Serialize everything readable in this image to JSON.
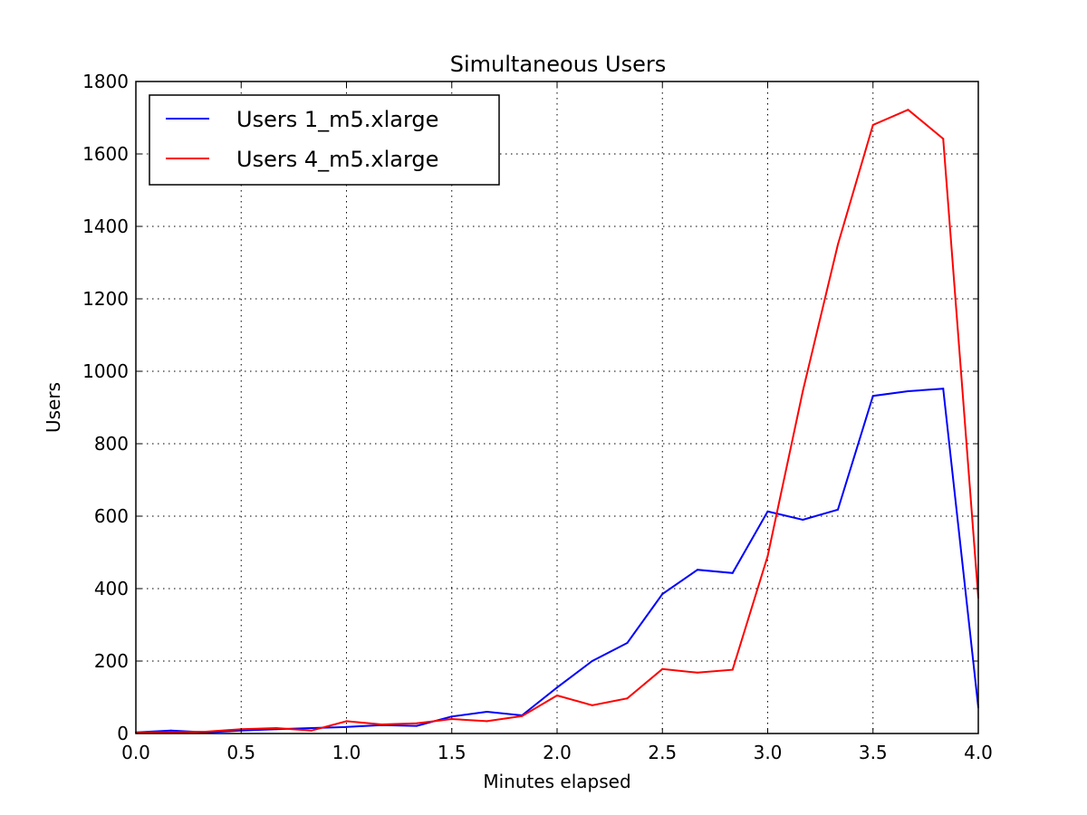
{
  "chart_data": {
    "type": "line",
    "title": "Simultaneous Users",
    "xlabel": "Minutes elapsed",
    "ylabel": "Users",
    "xlim": [
      0,
      4
    ],
    "ylim": [
      0,
      1800
    ],
    "grid": true,
    "legend_position": "top-left",
    "xticks": [
      "0.0",
      "0.5",
      "1.0",
      "1.5",
      "2.0",
      "2.5",
      "3.0",
      "3.5",
      "4.0"
    ],
    "yticks": [
      "0",
      "200",
      "400",
      "600",
      "800",
      "1000",
      "1200",
      "1400",
      "1600",
      "1800"
    ],
    "x": [
      0.0,
      0.1667,
      0.3333,
      0.5,
      0.6667,
      0.8333,
      1.0,
      1.1667,
      1.3333,
      1.5,
      1.6667,
      1.8333,
      2.0,
      2.1667,
      2.3333,
      2.5,
      2.6667,
      2.8333,
      3.0,
      3.1667,
      3.3333,
      3.5,
      3.6667,
      3.8333,
      4.0
    ],
    "series": [
      {
        "name": "Users 1_m5.xlarge",
        "color": "#0000ff",
        "values": [
          3,
          8,
          3,
          8,
          12,
          15,
          18,
          23,
          21,
          47,
          60,
          50,
          127,
          200,
          250,
          385,
          452,
          443,
          613,
          590,
          618,
          932,
          945,
          952,
          72
        ]
      },
      {
        "name": "Users 4_m5.xlarge",
        "color": "#ff0000",
        "values": [
          3,
          3,
          5,
          12,
          15,
          8,
          34,
          25,
          28,
          40,
          34,
          48,
          105,
          78,
          97,
          178,
          168,
          176,
          490,
          945,
          1350,
          1680,
          1722,
          1642,
          375
        ]
      }
    ]
  }
}
